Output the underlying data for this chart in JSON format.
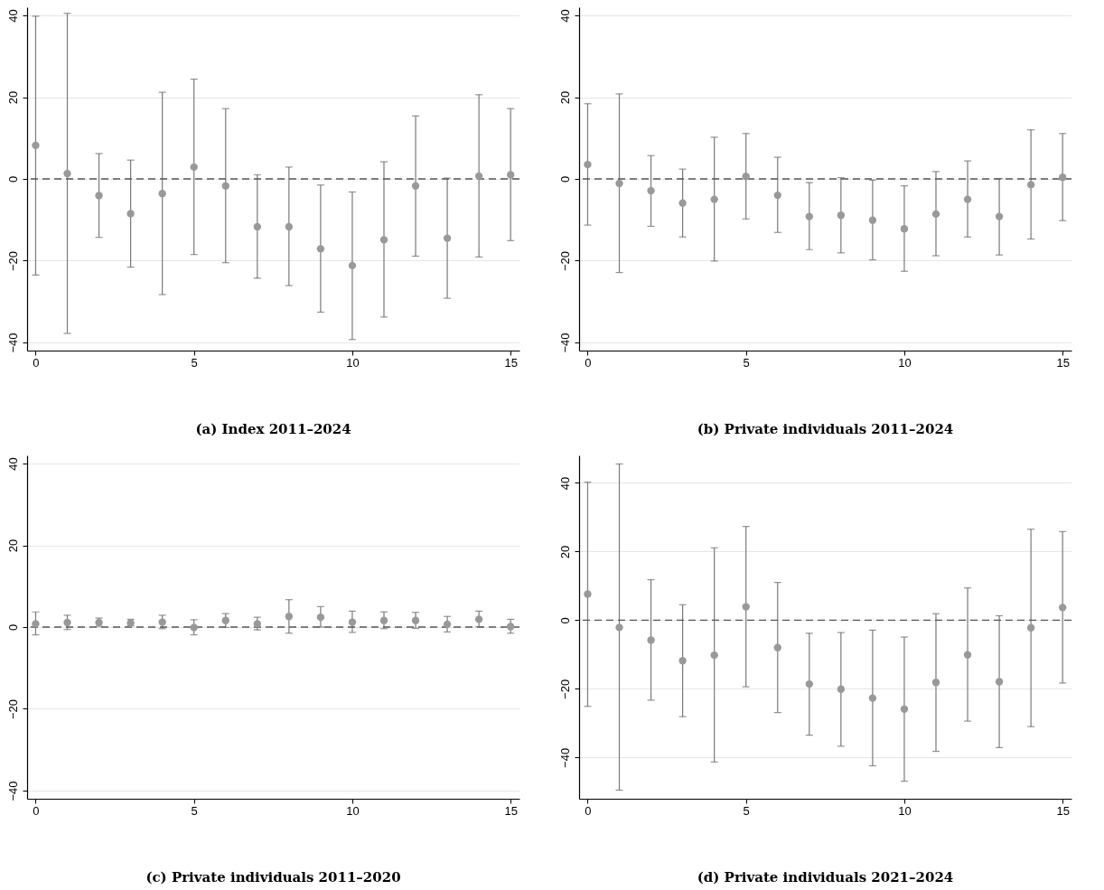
{
  "chart_data": [
    {
      "type": "scatter",
      "title": "(a) Index 2011–2024",
      "x": [
        0,
        1,
        2,
        3,
        4,
        5,
        6,
        7,
        8,
        9,
        10,
        11,
        12,
        13,
        14,
        15
      ],
      "series": [
        {
          "color": "#999999",
          "values": [
            8.2,
            1.3,
            -4.1,
            -8.5,
            -3.6,
            2.9,
            -1.7,
            -11.7,
            -11.7,
            -17.1,
            -21.2,
            -14.9,
            -1.7,
            -14.5,
            0.7,
            1.0
          ],
          "errors": [
            [
              -23.5,
              39.8
            ],
            [
              -37.8,
              40.5
            ],
            [
              -14.3,
              6.2
            ],
            [
              -21.6,
              4.6
            ],
            [
              -28.3,
              21.2
            ],
            [
              -18.5,
              24.4
            ],
            [
              -20.5,
              17.2
            ],
            [
              -24.3,
              1.0
            ],
            [
              -26.1,
              2.9
            ],
            [
              -32.6,
              -1.5
            ],
            [
              -39.3,
              -3.2
            ],
            [
              -33.8,
              4.2
            ],
            [
              -18.9,
              15.4
            ],
            [
              -29.2,
              0.2
            ],
            [
              -19.1,
              20.6
            ],
            [
              -15.1,
              17.2
            ]
          ]
        }
      ],
      "xlim": [
        -0.27,
        15.28
      ],
      "xticks": [
        0,
        5,
        10,
        15
      ],
      "ylim": [
        -42,
        42
      ],
      "yticks": [
        -40,
        -20,
        0,
        20,
        40
      ],
      "grid": "y",
      "marker": "circle",
      "ref_lines": [
        {
          "axis": "y",
          "value": 0,
          "color": "#555555",
          "line_style": "dashed"
        }
      ]
    },
    {
      "type": "scatter",
      "title": "(b) Private individuals 2011–2024",
      "x": [
        0,
        1,
        2,
        3,
        4,
        5,
        6,
        7,
        8,
        9,
        10,
        11,
        12,
        13,
        14,
        15
      ],
      "series": [
        {
          "color": "#999999",
          "values": [
            3.5,
            -1.1,
            -2.9,
            -5.9,
            -5.0,
            0.6,
            -4.0,
            -9.2,
            -8.9,
            -10.1,
            -12.2,
            -8.6,
            -5.0,
            -9.2,
            -1.4,
            0.4
          ],
          "errors": [
            [
              -11.3,
              18.4
            ],
            [
              -22.9,
              20.8
            ],
            [
              -11.6,
              5.7
            ],
            [
              -14.2,
              2.4
            ],
            [
              -20.1,
              10.2
            ],
            [
              -9.8,
              11.1
            ],
            [
              -13.1,
              5.3
            ],
            [
              -17.3,
              -0.9
            ],
            [
              -18.1,
              0.3
            ],
            [
              -19.8,
              -0.3
            ],
            [
              -22.6,
              -1.7
            ],
            [
              -18.8,
              1.8
            ],
            [
              -14.2,
              4.4
            ],
            [
              -18.6,
              0.1
            ],
            [
              -14.7,
              12.0
            ],
            [
              -10.2,
              11.1
            ]
          ]
        }
      ],
      "xlim": [
        -0.27,
        15.28
      ],
      "xticks": [
        0,
        5,
        10,
        15
      ],
      "ylim": [
        -42,
        42
      ],
      "yticks": [
        -40,
        -20,
        0,
        20,
        40
      ],
      "grid": "y",
      "marker": "circle",
      "ref_lines": [
        {
          "axis": "y",
          "value": 0,
          "color": "#555555",
          "line_style": "dashed"
        }
      ]
    },
    {
      "type": "scatter",
      "title": "(c) Private individuals 2011–2020",
      "x": [
        0,
        1,
        2,
        3,
        4,
        5,
        6,
        7,
        8,
        9,
        10,
        11,
        12,
        13,
        14,
        15
      ],
      "series": [
        {
          "color": "#999999",
          "values": [
            0.8,
            1.1,
            1.1,
            1.0,
            1.2,
            -0.1,
            1.6,
            0.8,
            2.6,
            2.4,
            1.2,
            1.6,
            1.6,
            0.7,
            1.9,
            0.1
          ],
          "errors": [
            [
              -1.9,
              3.7
            ],
            [
              -0.6,
              2.9
            ],
            [
              0.2,
              2.2
            ],
            [
              0.3,
              1.9
            ],
            [
              -0.4,
              2.9
            ],
            [
              -1.9,
              1.8
            ],
            [
              -0.1,
              3.3
            ],
            [
              -0.7,
              2.4
            ],
            [
              -1.5,
              6.7
            ],
            [
              0,
              5.0
            ],
            [
              -1.3,
              3.9
            ],
            [
              -0.4,
              3.7
            ],
            [
              -0.3,
              3.6
            ],
            [
              -1.2,
              2.6
            ],
            [
              0.1,
              3.9
            ],
            [
              -1.5,
              1.9
            ]
          ]
        }
      ],
      "xlim": [
        -0.27,
        15.28
      ],
      "xticks": [
        0,
        5,
        10,
        15
      ],
      "ylim": [
        -42,
        42
      ],
      "yticks": [
        -40,
        -20,
        0,
        20,
        40
      ],
      "grid": "y",
      "marker": "circle",
      "ref_lines": [
        {
          "axis": "y",
          "value": 0,
          "color": "#555555",
          "line_style": "dashed"
        }
      ]
    },
    {
      "type": "scatter",
      "title": "(d) Private individuals 2021–2024",
      "x": [
        0,
        1,
        2,
        3,
        4,
        5,
        6,
        7,
        8,
        9,
        10,
        11,
        12,
        13,
        14,
        15
      ],
      "series": [
        {
          "color": "#999999",
          "values": [
            7.6,
            -2.1,
            -5.8,
            -11.8,
            -10.2,
            3.9,
            -8.0,
            -18.6,
            -20.1,
            -22.7,
            -25.9,
            -18.1,
            -10.1,
            -17.9,
            -2.2,
            3.7
          ],
          "errors": [
            [
              -25.1,
              40.2
            ],
            [
              -49.5,
              45.5
            ],
            [
              -23.3,
              11.8
            ],
            [
              -28.1,
              4.5
            ],
            [
              -41.3,
              21.1
            ],
            [
              -19.4,
              27.3
            ],
            [
              -26.9,
              11.0
            ],
            [
              -33.5,
              -3.8
            ],
            [
              -36.7,
              -3.6
            ],
            [
              -42.4,
              -2.9
            ],
            [
              -46.9,
              -4.9
            ],
            [
              -38.2,
              1.9
            ],
            [
              -29.4,
              9.4
            ],
            [
              -37.1,
              1.3
            ],
            [
              -31.0,
              26.5
            ],
            [
              -18.3,
              25.8
            ]
          ]
        }
      ],
      "xlim": [
        -0.27,
        15.28
      ],
      "xticks": [
        0,
        5,
        10,
        15
      ],
      "ylim": [
        -52,
        48
      ],
      "yticks": [
        -40,
        -20,
        0,
        20,
        40
      ],
      "grid": "y",
      "marker": "circle",
      "ref_lines": [
        {
          "axis": "y",
          "value": 0,
          "color": "#555555",
          "line_style": "dashed"
        }
      ]
    }
  ]
}
